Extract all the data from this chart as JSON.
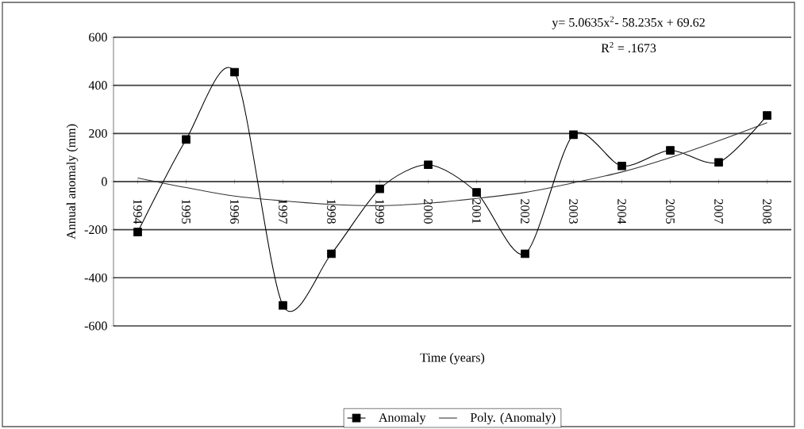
{
  "chart_data": {
    "type": "line",
    "xlabel": "Time (years)",
    "ylabel": "Annual anomaly (mm)",
    "categories": [
      "1994",
      "1995",
      "1996",
      "1997",
      "1998",
      "1999",
      "2000",
      "2001",
      "2002",
      "2003",
      "2004",
      "2005",
      "2007",
      "2008"
    ],
    "series": [
      {
        "name": "Anomaly",
        "color": "#000000",
        "marker": "square",
        "values": [
          -210,
          175,
          455,
          -515,
          -300,
          -30,
          70,
          -45,
          -300,
          195,
          65,
          130,
          80,
          275
        ]
      },
      {
        "name": "Poly. (Anomaly)",
        "color": "#333333",
        "marker": "none",
        "values": [
          15,
          -25,
          -60,
          -80,
          -95,
          -100,
          -90,
          -70,
          -45,
          -5,
          40,
          100,
          170,
          245
        ]
      }
    ],
    "ylim": [
      -600,
      600
    ],
    "yticks": [
      -600,
      -400,
      -200,
      0,
      200,
      400,
      600
    ],
    "grid": "y",
    "legend": "bottom",
    "annotations": [
      "y= 5.0635x$^{2}$- 58.235x + 69.62",
      "R$^{2}$ = .1673"
    ]
  }
}
